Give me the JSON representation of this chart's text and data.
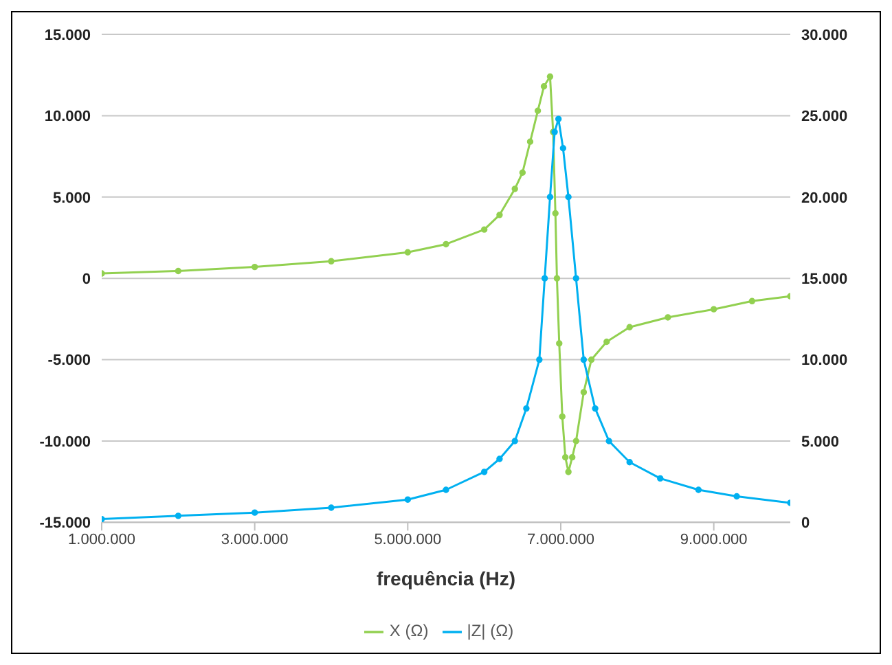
{
  "chart_data": {
    "type": "line",
    "xlabel": "frequência (Hz)",
    "xlim": [
      1000000,
      10000000
    ],
    "xticks": [
      {
        "value": 1000000,
        "label": "1.000.000"
      },
      {
        "value": 3000000,
        "label": "3.000.000"
      },
      {
        "value": 5000000,
        "label": "5.000.000"
      },
      {
        "value": 7000000,
        "label": "7.000.000"
      },
      {
        "value": 9000000,
        "label": "9.000.000"
      }
    ],
    "ylim": [
      -15000,
      15000
    ],
    "yticks": [
      {
        "value": -15000,
        "label": "-15.000"
      },
      {
        "value": -10000,
        "label": "-10.000"
      },
      {
        "value": -5000,
        "label": "-5.000"
      },
      0,
      {
        "value": 5000,
        "label": "5.000"
      },
      {
        "value": 10000,
        "label": "10.000"
      },
      {
        "value": 15000,
        "label": "15.000"
      }
    ],
    "y2lim": [
      0,
      30000
    ],
    "y2ticks": [
      0,
      {
        "value": 5000,
        "label": "5.000"
      },
      {
        "value": 10000,
        "label": "10.000"
      },
      {
        "value": 15000,
        "label": "15.000"
      },
      {
        "value": 20000,
        "label": "20.000"
      },
      {
        "value": 25000,
        "label": "25.000"
      },
      {
        "value": 30000,
        "label": "30.000"
      }
    ],
    "grid": "y",
    "legend": "bottom",
    "marker": "circle",
    "line_style": "solid",
    "series": [
      {
        "name": "X (Ω)",
        "color": "#92d050",
        "x": [
          1000000,
          2000000,
          3000000,
          4000000,
          5000000,
          5500000,
          6000000,
          6200000,
          6400000,
          6500000,
          6600000,
          6700000,
          6780000,
          6860000,
          6900000,
          6930000,
          6950000,
          6980000,
          7020000,
          7060000,
          7100000,
          7150000,
          7200000,
          7300000,
          7400000,
          7600000,
          7900000,
          8400000,
          9000000,
          9500000,
          10000000
        ],
        "values": [
          300,
          450,
          700,
          1050,
          1600,
          2100,
          3000,
          3900,
          5500,
          6500,
          8400,
          10300,
          11800,
          12400,
          9000,
          4000,
          0,
          -4000,
          -8500,
          -11000,
          -11900,
          -11000,
          -10000,
          -7000,
          -5000,
          -3900,
          -3000,
          -2400,
          -1900,
          -1400,
          -1100
        ]
      },
      {
        "name": "|Z| (Ω)",
        "color": "#00b0f0",
        "axis": "y2",
        "x": [
          1000000,
          2000000,
          3000000,
          4000000,
          5000000,
          5500000,
          6000000,
          6200000,
          6400000,
          6550000,
          6720000,
          6790000,
          6860000,
          6920000,
          6970000,
          7030000,
          7100000,
          7200000,
          7300000,
          7450000,
          7630000,
          7900000,
          8300000,
          8800000,
          9300000,
          10000000
        ],
        "values": [
          200,
          400,
          600,
          900,
          1400,
          2000,
          3100,
          3900,
          5000,
          7000,
          10000,
          15000,
          20000,
          24000,
          24800,
          23000,
          20000,
          15000,
          10000,
          7000,
          5000,
          3700,
          2700,
          2000,
          1600,
          1200
        ]
      }
    ]
  }
}
